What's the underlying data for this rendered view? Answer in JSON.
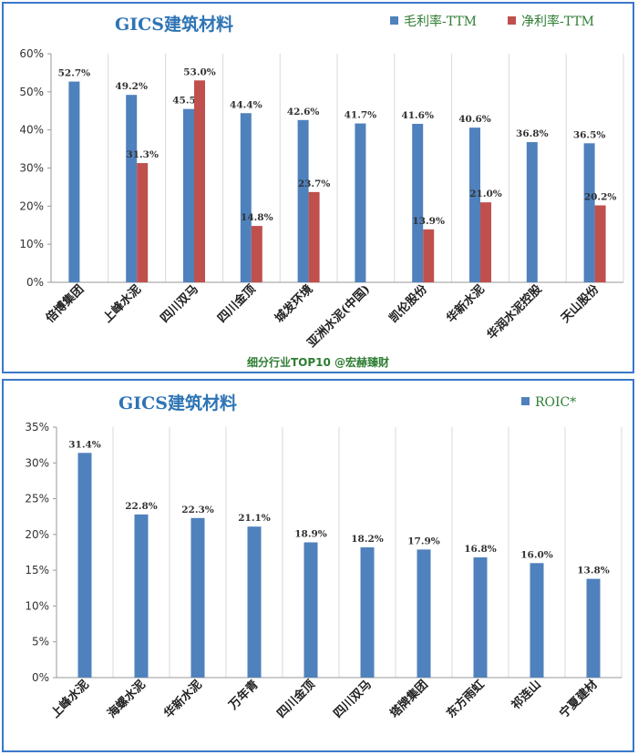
{
  "chart_data": [
    {
      "type": "bar",
      "title": "GICS建筑材料",
      "categories": [
        "倍博集团",
        "上峰水泥",
        "四川双马",
        "四川金顶",
        "城发环境",
        "亚洲水泥(中国)",
        "凯伦股份",
        "华新水泥",
        "华润水泥控股",
        "天山股份"
      ],
      "series": [
        {
          "name": "毛利率-TTM",
          "color": "#4f81bd",
          "values": [
            52.7,
            49.2,
            45.5,
            44.4,
            42.6,
            41.7,
            41.6,
            40.6,
            36.8,
            36.5
          ]
        },
        {
          "name": "净利率-TTM",
          "color": "#c0504d",
          "values": [
            null,
            31.3,
            53.0,
            14.8,
            23.7,
            null,
            13.9,
            21.0,
            null,
            20.2
          ]
        }
      ],
      "ylim": [
        0,
        60
      ],
      "yticks": [
        0,
        10,
        20,
        30,
        40,
        50,
        60
      ],
      "unit": "%",
      "grid": "vertical",
      "legend": "top-right",
      "footer": "细分行业TOP10 @宏赫臻财"
    },
    {
      "type": "bar",
      "title": "GICS建筑材料",
      "categories": [
        "上峰水泥",
        "海螺水泥",
        "华新水泥",
        "万年青",
        "四川金顶",
        "四川双马",
        "塔牌集团",
        "东方雨虹",
        "祁连山",
        "宁夏建材"
      ],
      "series": [
        {
          "name": "ROIC*",
          "color": "#4f81bd",
          "values": [
            31.4,
            22.8,
            22.3,
            21.1,
            18.9,
            18.2,
            17.9,
            16.8,
            16.0,
            13.8
          ]
        }
      ],
      "ylim": [
        0,
        35
      ],
      "yticks": [
        0,
        5,
        10,
        15,
        20,
        25,
        30,
        35
      ],
      "unit": "%",
      "grid": "vertical",
      "legend": "top-right"
    }
  ]
}
